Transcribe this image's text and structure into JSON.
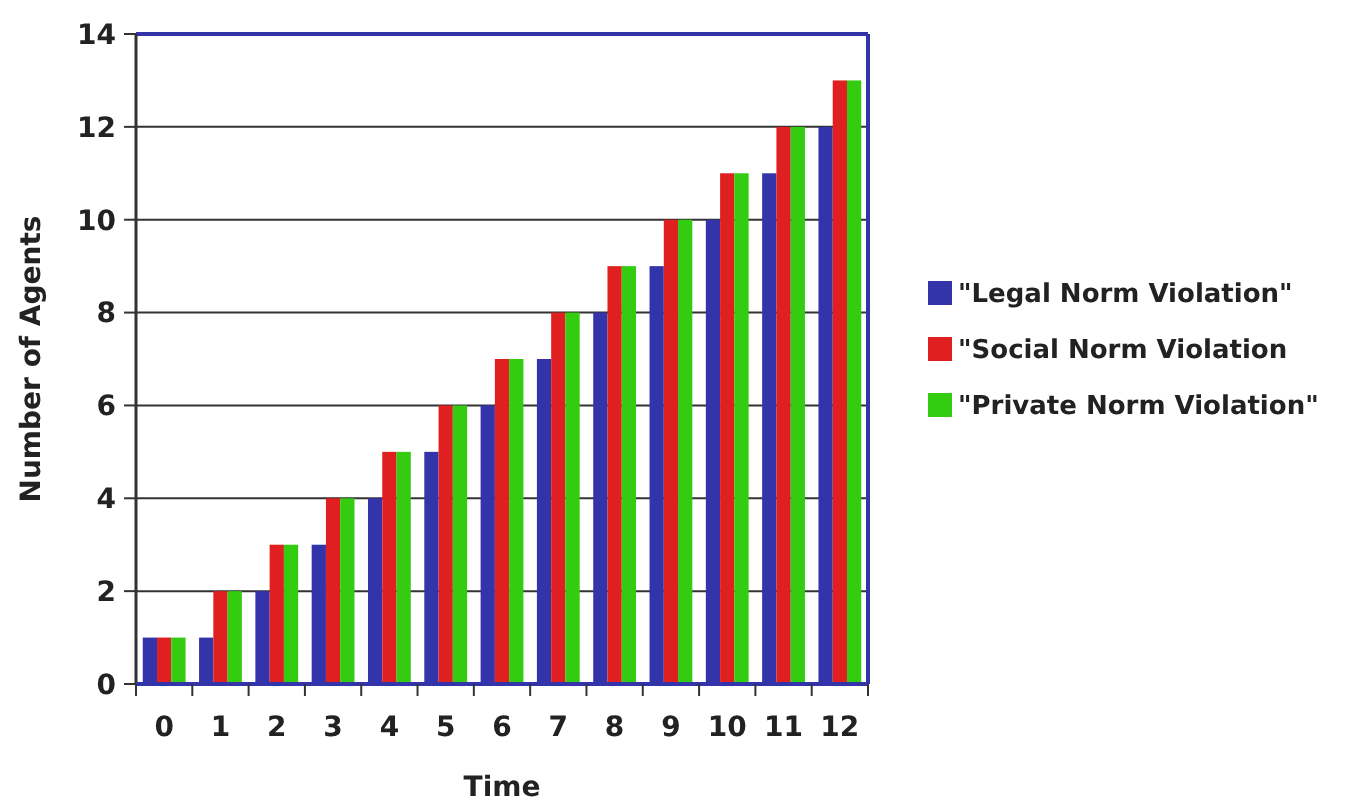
{
  "chart_data": {
    "type": "bar",
    "xlabel": "Time",
    "ylabel": "Number of Agents",
    "categories": [
      "0",
      "1",
      "2",
      "3",
      "4",
      "5",
      "6",
      "7",
      "8",
      "9",
      "10",
      "11",
      "12"
    ],
    "series": [
      {
        "name": "\"Legal Norm Violation\"",
        "color": "#3333aa",
        "values": [
          1,
          1,
          2,
          3,
          4,
          5,
          6,
          7,
          8,
          9,
          10,
          11,
          12
        ]
      },
      {
        "name": "\"Social Norm Violation",
        "color": "#e02020",
        "values": [
          1,
          2,
          3,
          4,
          5,
          6,
          7,
          8,
          9,
          10,
          11,
          12,
          13
        ]
      },
      {
        "name": "\"Private Norm Violation\"",
        "color": "#33cc11",
        "values": [
          1,
          2,
          3,
          4,
          5,
          6,
          7,
          8,
          9,
          10,
          11,
          12,
          13
        ]
      }
    ],
    "ylim": [
      0,
      14
    ],
    "yticks": [
      0,
      2,
      4,
      6,
      8,
      10,
      12,
      14
    ],
    "grid": "y",
    "legend": "right"
  }
}
